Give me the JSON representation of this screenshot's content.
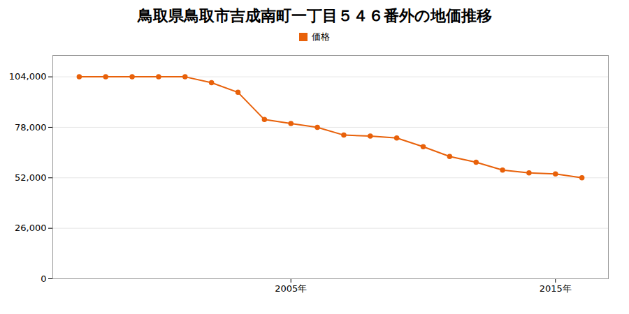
{
  "chart_data": {
    "type": "line",
    "title": "鳥取県鳥取市吉成南町一丁目５４６番外の地価推移",
    "x": [
      1997,
      1998,
      1999,
      2000,
      2001,
      2002,
      2003,
      2004,
      2005,
      2006,
      2007,
      2008,
      2009,
      2010,
      2011,
      2012,
      2013,
      2014,
      2015,
      2016
    ],
    "series": [
      {
        "name": "価格",
        "color": "#e8610a",
        "marker": "circle",
        "values": [
          104000,
          104000,
          104000,
          104000,
          104000,
          101000,
          96000,
          82000,
          80000,
          78000,
          74000,
          73500,
          72500,
          68000,
          63000,
          60000,
          56000,
          54500,
          54000,
          52000
        ]
      }
    ],
    "xlim": [
      1996,
      2017
    ],
    "xticks": [
      {
        "value": 2005,
        "label": "2005年"
      },
      {
        "value": 2015,
        "label": "2015年"
      }
    ],
    "ylim": [
      0,
      115000
    ],
    "yticks": [
      0,
      {
        "value": 26000,
        "label": "26,000"
      },
      {
        "value": 52000,
        "label": "52,000"
      },
      {
        "value": 78000,
        "label": "78,000"
      },
      {
        "value": 104000,
        "label": "104,000"
      }
    ],
    "grid": "y",
    "legend": "top"
  }
}
